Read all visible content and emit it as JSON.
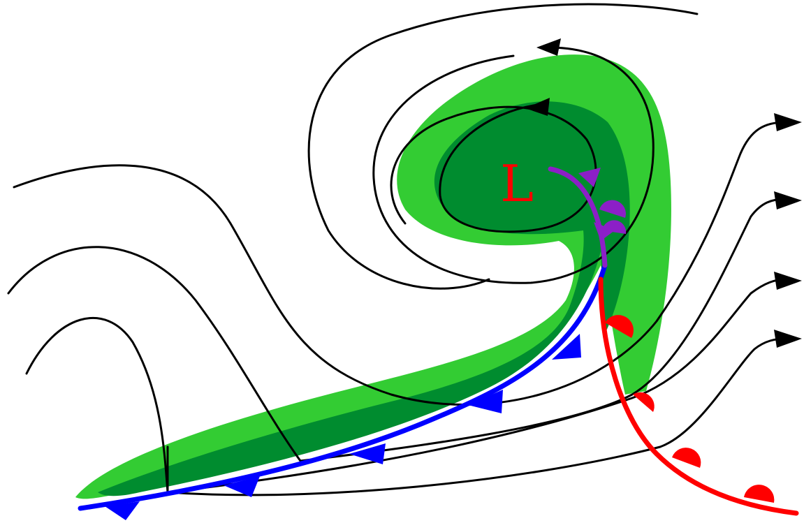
{
  "diagram": {
    "low_label": "L",
    "colors": {
      "background": "#ffffff",
      "precip_light": "#33cc33",
      "precip_dark": "#008c2f",
      "cold_front": "#0000ff",
      "warm_front": "#ff0000",
      "occluded_front": "#8c1fc7",
      "low_label": "#ff0000",
      "streamlines": "#000000"
    },
    "features": [
      "low-pressure-center",
      "light-precipitation-band",
      "heavy-precipitation-band",
      "cold-front",
      "warm-front",
      "occluded-front",
      "airflow-streamlines"
    ]
  }
}
